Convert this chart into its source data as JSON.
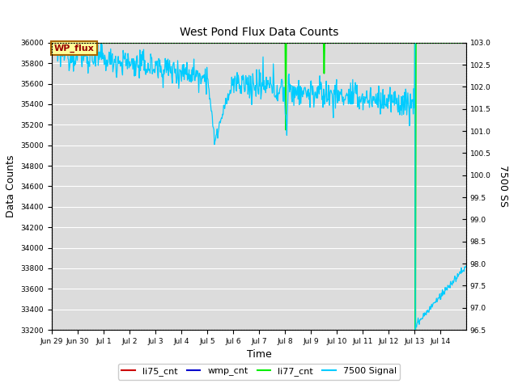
{
  "title": "West Pond Flux Data Counts",
  "xlabel": "Time",
  "ylabel": "Data Counts",
  "ylabel_right": "7500 SS",
  "ylim_left": [
    33200,
    36000
  ],
  "ylim_right": [
    96.5,
    103.0
  ],
  "background_color": "#dcdcdc",
  "wp_flux_box": {
    "text": "WP_flux",
    "bg": "#ffff99",
    "border": "#aa6600",
    "text_color": "#990000"
  },
  "li77_cnt_color": "#00ee00",
  "signal7500_color": "#00ccff",
  "li75_cnt_color": "#cc0000",
  "wmp_cnt_color": "#0000cc",
  "legend_items": [
    "li75_cnt",
    "wmp_cnt",
    "li77_cnt",
    "7500 Signal"
  ],
  "legend_colors": [
    "#cc0000",
    "#0000cc",
    "#00ee00",
    "#00ccff"
  ],
  "x_tick_labels": [
    "Jun 29",
    "Jun 30",
    "Jul 1",
    "Jul 2",
    "Jul 3",
    "Jul 4",
    "Jul 5",
    "Jul 6",
    "Jul 7",
    "Jul 8",
    "Jul 9",
    "Jul 10",
    "Jul 11",
    "Jul 12",
    "Jul 13",
    "Jul 14"
  ],
  "n_days": 16
}
